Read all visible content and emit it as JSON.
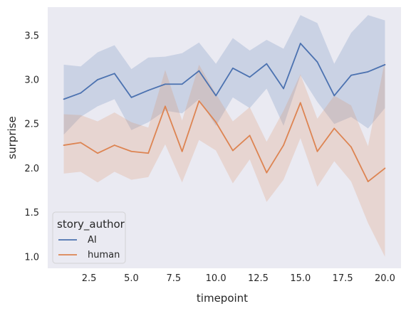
{
  "chart_data": {
    "type": "line",
    "title": "",
    "xlabel": "timepoint",
    "ylabel": "surprise",
    "xlim": [
      0.05,
      20.95
    ],
    "ylim": [
      0.87,
      3.82
    ],
    "x_ticks": [
      2.5,
      5.0,
      7.5,
      10.0,
      12.5,
      15.0,
      17.5,
      20.0
    ],
    "x_tick_labels": [
      "2.5",
      "5.0",
      "7.5",
      "10.0",
      "12.5",
      "15.0",
      "17.5",
      "20.0"
    ],
    "y_ticks": [
      1.0,
      1.5,
      2.0,
      2.5,
      3.0,
      3.5
    ],
    "y_tick_labels": [
      "1.0",
      "1.5",
      "2.0",
      "2.5",
      "3.0",
      "3.5"
    ],
    "grid": false,
    "background": "#eaeaf2",
    "legend": {
      "title": "story_author",
      "position": "lower-left"
    },
    "x": [
      1,
      2,
      3,
      4,
      5,
      6,
      7,
      8,
      9,
      10,
      11,
      12,
      13,
      14,
      15,
      16,
      17,
      18,
      19,
      20
    ],
    "series": [
      {
        "name": "AI",
        "color": "#4c72b0",
        "values": [
          2.78,
          2.85,
          3.0,
          3.07,
          2.8,
          2.88,
          2.95,
          2.95,
          3.1,
          2.82,
          3.13,
          3.03,
          3.18,
          2.9,
          3.41,
          3.2,
          2.82,
          3.05,
          3.09,
          3.17
        ],
        "ci_lower": [
          2.38,
          2.58,
          2.7,
          2.78,
          2.43,
          2.52,
          2.65,
          2.62,
          2.78,
          2.48,
          2.8,
          2.68,
          2.9,
          2.48,
          3.05,
          2.75,
          2.5,
          2.58,
          2.45,
          2.68
        ],
        "ci_upper": [
          3.17,
          3.15,
          3.31,
          3.39,
          3.12,
          3.25,
          3.26,
          3.3,
          3.42,
          3.18,
          3.47,
          3.33,
          3.45,
          3.35,
          3.73,
          3.64,
          3.18,
          3.53,
          3.73,
          3.67
        ]
      },
      {
        "name": "human",
        "color": "#dd8452",
        "values": [
          2.26,
          2.29,
          2.17,
          2.26,
          2.19,
          2.17,
          2.7,
          2.19,
          2.76,
          2.52,
          2.2,
          2.37,
          1.95,
          2.26,
          2.74,
          2.19,
          2.45,
          2.24,
          1.85,
          2.0
        ],
        "ci_lower": [
          1.94,
          1.96,
          1.84,
          1.96,
          1.87,
          1.9,
          2.27,
          1.84,
          2.32,
          2.2,
          1.83,
          2.1,
          1.62,
          1.87,
          2.34,
          1.79,
          2.08,
          1.85,
          1.38,
          1.0
        ],
        "ci_upper": [
          2.61,
          2.6,
          2.53,
          2.63,
          2.52,
          2.46,
          3.11,
          2.54,
          3.17,
          2.84,
          2.53,
          2.69,
          2.3,
          2.65,
          3.06,
          2.56,
          2.82,
          2.71,
          2.25,
          3.22
        ]
      }
    ]
  }
}
